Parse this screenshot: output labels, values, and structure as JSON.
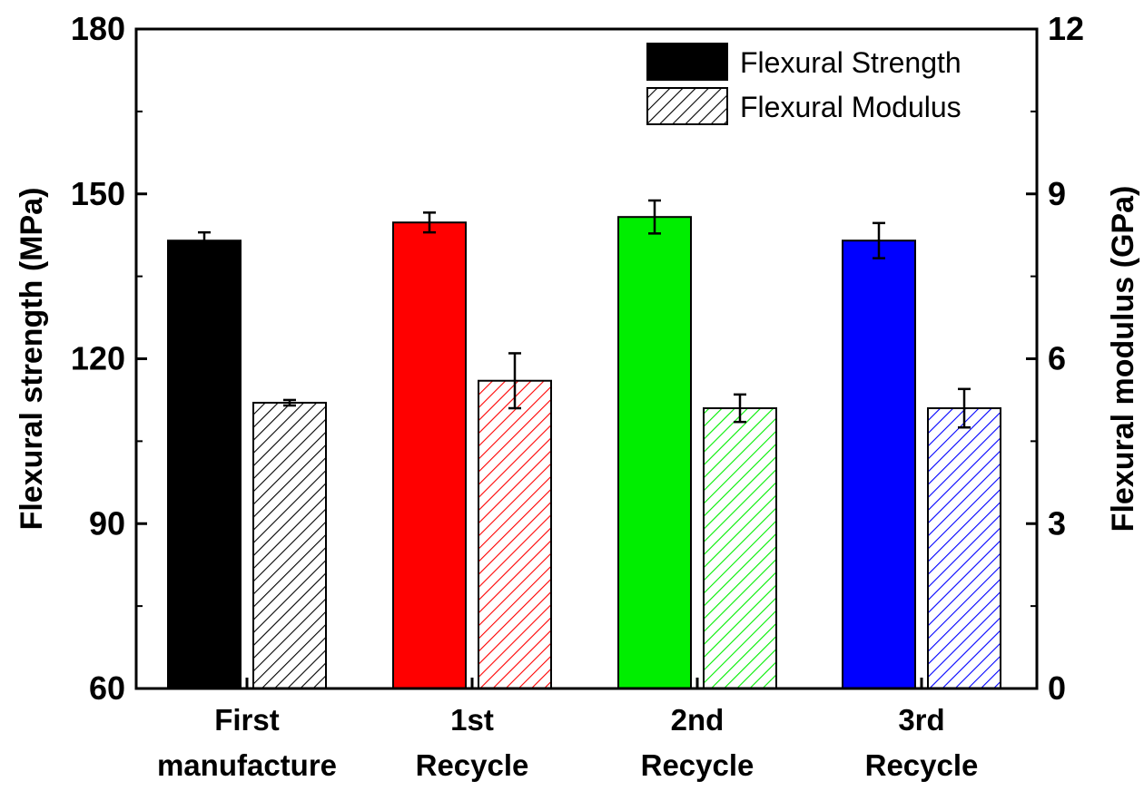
{
  "chart_data": {
    "type": "bar",
    "categories": [
      [
        "First",
        "manufacture"
      ],
      [
        "1st",
        "Recycle"
      ],
      [
        "2nd",
        "Recycle"
      ],
      [
        "3rd",
        "Recycle"
      ]
    ],
    "colors": [
      "#000000",
      "#ff0000",
      "#00ee00",
      "#0000ff"
    ],
    "series": [
      {
        "name": "Flexural Strength",
        "axis": "left",
        "fill": "solid",
        "values": [
          141.5,
          144.8,
          145.8,
          141.5
        ],
        "errors": [
          1.5,
          1.8,
          3.0,
          3.2
        ]
      },
      {
        "name": "Flexural Modulus",
        "axis": "right",
        "fill": "hatched",
        "values": [
          5.2,
          5.6,
          5.1,
          5.1
        ],
        "errors": [
          0.05,
          0.5,
          0.25,
          0.35
        ]
      }
    ],
    "ylabel": "Flexural strength (MPa)",
    "y2label": "Flexural modulus (GPa)",
    "ylim": [
      60,
      180
    ],
    "y2lim": [
      0,
      12
    ],
    "yticks": [
      "60",
      "90",
      "120",
      "150",
      "180"
    ],
    "y2ticks": [
      "0",
      "3",
      "6",
      "9",
      "12"
    ],
    "legend_position": "top-right",
    "grid": false
  }
}
